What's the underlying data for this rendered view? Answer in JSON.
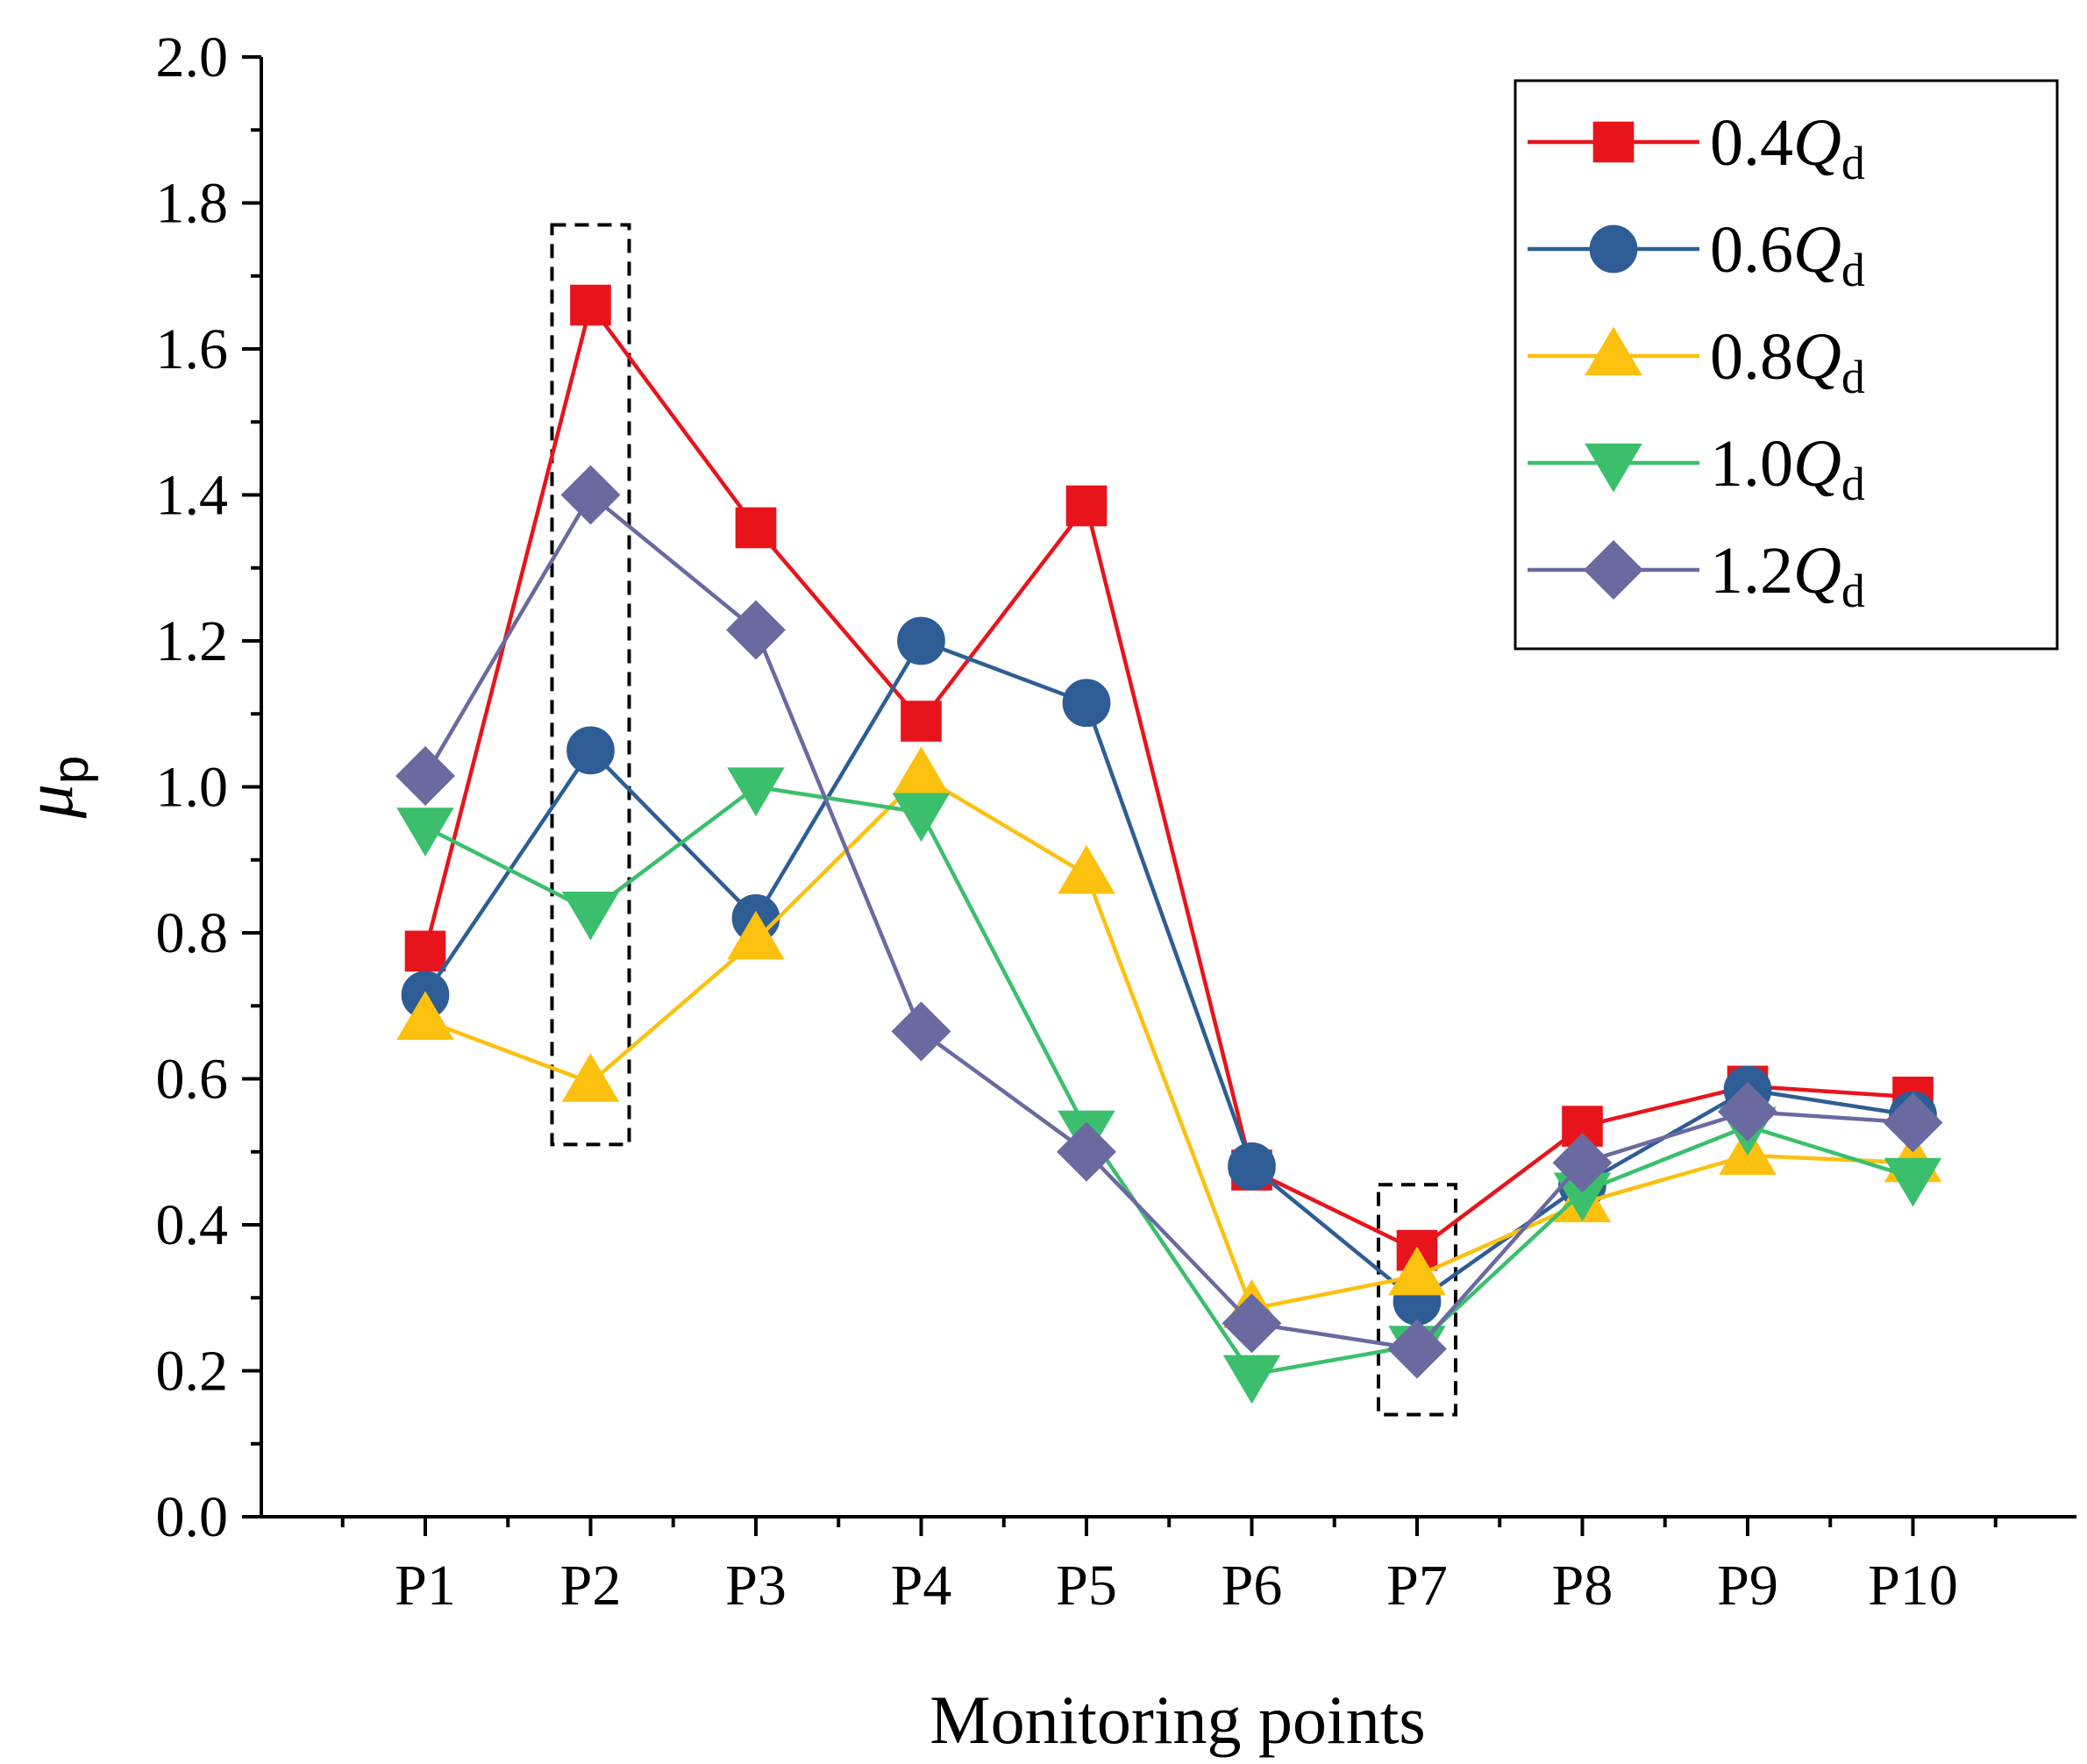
{
  "chart_data": {
    "type": "line",
    "title": "",
    "xlabel": "Monitoring points",
    "ylabel": {
      "symbol": "μ",
      "subscript": "p"
    },
    "ylim": [
      0,
      2.0
    ],
    "yticks": [
      "0.0",
      "0.2",
      "0.4",
      "0.6",
      "0.8",
      "1.0",
      "1.2",
      "1.4",
      "1.6",
      "1.8",
      "2.0"
    ],
    "categories": [
      "P1",
      "P2",
      "P3",
      "P4",
      "P5",
      "P6",
      "P7",
      "P8",
      "P9",
      "P10"
    ],
    "grid": false,
    "legend_position": "top-right",
    "series": [
      {
        "name": "0.4",
        "name_italic": "Q",
        "name_sub": "d",
        "color": "#e8141c",
        "marker": "square",
        "values": [
          0.775,
          1.66,
          1.355,
          1.09,
          1.385,
          0.475,
          0.365,
          0.535,
          0.59,
          0.575
        ]
      },
      {
        "name": "0.6",
        "name_italic": "Q",
        "name_sub": "d",
        "color": "#2e5d96",
        "marker": "circle",
        "values": [
          0.715,
          1.05,
          0.82,
          1.2,
          1.115,
          0.48,
          0.295,
          0.455,
          0.585,
          0.55
        ]
      },
      {
        "name": "0.8",
        "name_italic": "Q",
        "name_sub": "d",
        "color": "#fcc00e",
        "marker": "triangle-up",
        "values": [
          0.68,
          0.595,
          0.79,
          1.015,
          0.88,
          0.285,
          0.33,
          0.43,
          0.495,
          0.485
        ]
      },
      {
        "name": "1.0",
        "name_italic": "Q",
        "name_sub": "d",
        "color": "#3bbf6c",
        "marker": "triangle-down",
        "values": [
          0.945,
          0.83,
          1.0,
          0.965,
          0.53,
          0.195,
          0.235,
          0.445,
          0.535,
          0.465
        ]
      },
      {
        "name": "1.2",
        "name_italic": "Q",
        "name_sub": "d",
        "color": "#6a6aa1",
        "marker": "diamond",
        "values": [
          1.015,
          1.4,
          1.215,
          0.665,
          0.5,
          0.265,
          0.23,
          0.485,
          0.555,
          0.54
        ]
      }
    ],
    "annotations": [
      {
        "type": "dashed-box",
        "category": "P2",
        "y_range": [
          0.51,
          1.77
        ]
      },
      {
        "type": "dashed-box",
        "category": "P7",
        "y_range": [
          0.14,
          0.455
        ]
      }
    ]
  }
}
